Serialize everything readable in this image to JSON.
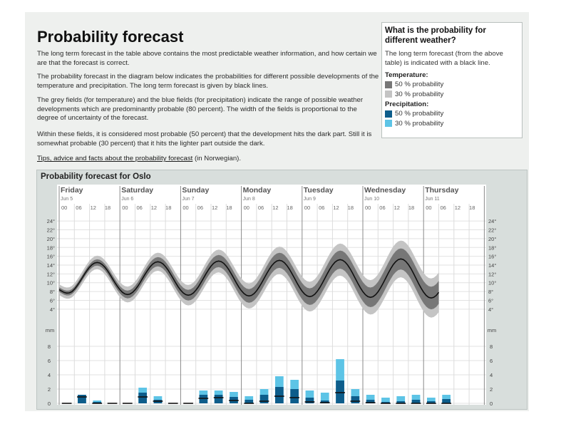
{
  "title": "Probability forecast",
  "paragraphs": [
    "The long term forecast in the table above contains the most predictable weather information, and how certain we are that the forecast is correct.",
    "The probability forecast in the diagram below indicates the probabilities for different possible developments of the temperature and precipitation. The long term forecast is given by black lines.",
    "The grey fields (for temperature) and the blue fields (for precipitation) indicate the range of possible weather developments which are predominantly probable (80 percent). The width of the fields is proportional to the degree of uncertainty of the forecast.",
    "Within these fields, it is considered most probable (50 percent) that the development hits the dark part. Still it is somewhat probable (30 percent) that it hits the lighter part outside the dark."
  ],
  "tips": {
    "link_text": "Tips, advice and facts about the probability forecast",
    "suffix": " (in Norwegian)."
  },
  "info": {
    "title": "What is the probability for different weather?",
    "text": "The long term forecast (from the above table) is indicated with a black line.",
    "temperature_label": "Temperature:",
    "precipitation_label": "Precipitation:",
    "temp_50": "50 % probability",
    "temp_30": "30 % probability",
    "precip_50": "50 % probability",
    "precip_30": "30 % probability"
  },
  "colors": {
    "temp_dark": "#777777",
    "temp_light": "#c4c4c4",
    "precip_dark": "#0d5d8b",
    "precip_light": "#5dc4e6"
  },
  "chart_data": {
    "type": "area",
    "title": "Probability forecast for Oslo",
    "days": [
      {
        "name": "Friday",
        "date": "Jun 5"
      },
      {
        "name": "Saturday",
        "date": "Jun 6"
      },
      {
        "name": "Sunday",
        "date": "Jun 7"
      },
      {
        "name": "Monday",
        "date": "Jun 8"
      },
      {
        "name": "Tuesday",
        "date": "Jun 9"
      },
      {
        "name": "Wednesday",
        "date": "Jun 10"
      },
      {
        "name": "Thursday",
        "date": "Jun 11"
      }
    ],
    "hour_labels": [
      "00",
      "06",
      "12",
      "18"
    ],
    "temp_ticks": [
      "24°",
      "22°",
      "20°",
      "18°",
      "16°",
      "14°",
      "12°",
      "10°",
      "8°",
      "6°",
      "4°"
    ],
    "temp_ylim": [
      3,
      25
    ],
    "precip_unit": "mm",
    "precip_ticks": [
      "8",
      "6",
      "4",
      "2",
      "0"
    ],
    "precip_ylim": [
      0,
      8
    ],
    "temperature": {
      "median_mean": 11.0,
      "median_amplitude_start": 3.5,
      "median_amplitude_end": 4.5,
      "band_dark_halfwidth_start": 0.5,
      "band_dark_halfwidth_end": 2.6,
      "band_light_halfwidth_start": 1.2,
      "band_light_halfwidth_end": 4.5,
      "max_hour": 15,
      "start_value": 8.3,
      "end_hour": 150
    },
    "precipitation_6h": [
      {
        "hour": 0,
        "median": 0,
        "p50": 0,
        "p80": 0
      },
      {
        "hour": 6,
        "median": 0.9,
        "p50": 1.2,
        "p80": 1.2
      },
      {
        "hour": 12,
        "median": 0,
        "p50": 0.2,
        "p80": 0.4
      },
      {
        "hour": 18,
        "median": 0,
        "p50": 0,
        "p80": 0
      },
      {
        "hour": 24,
        "median": 0,
        "p50": 0,
        "p80": 0
      },
      {
        "hour": 30,
        "median": 0.9,
        "p50": 1.5,
        "p80": 2.2
      },
      {
        "hour": 36,
        "median": 0.3,
        "p50": 0.5,
        "p80": 1.0
      },
      {
        "hour": 42,
        "median": 0,
        "p50": 0,
        "p80": 0
      },
      {
        "hour": 48,
        "median": 0,
        "p50": 0,
        "p80": 0
      },
      {
        "hour": 54,
        "median": 0.7,
        "p50": 1.2,
        "p80": 1.8
      },
      {
        "hour": 60,
        "median": 0.8,
        "p50": 1.2,
        "p80": 1.8
      },
      {
        "hour": 66,
        "median": 0.4,
        "p50": 0.9,
        "p80": 1.6
      },
      {
        "hour": 72,
        "median": 0,
        "p50": 0.5,
        "p80": 1.0
      },
      {
        "hour": 78,
        "median": 0.3,
        "p50": 1.2,
        "p80": 2.0
      },
      {
        "hour": 84,
        "median": 1.0,
        "p50": 2.3,
        "p80": 3.8
      },
      {
        "hour": 90,
        "median": 0.8,
        "p50": 2.0,
        "p80": 3.3
      },
      {
        "hour": 96,
        "median": 0.2,
        "p50": 0.8,
        "p80": 1.8
      },
      {
        "hour": 102,
        "median": 0.1,
        "p50": 0.4,
        "p80": 1.5
      },
      {
        "hour": 108,
        "median": 1.5,
        "p50": 3.2,
        "p80": 6.2
      },
      {
        "hour": 114,
        "median": 0.3,
        "p50": 1.0,
        "p80": 2.0
      },
      {
        "hour": 120,
        "median": 0.1,
        "p50": 0.5,
        "p80": 1.2
      },
      {
        "hour": 126,
        "median": 0,
        "p50": 0.2,
        "p80": 0.8
      },
      {
        "hour": 132,
        "median": 0,
        "p50": 0.3,
        "p80": 1.0
      },
      {
        "hour": 138,
        "median": 0,
        "p50": 0.5,
        "p80": 1.2
      },
      {
        "hour": 144,
        "median": 0,
        "p50": 0.3,
        "p80": 0.8
      },
      {
        "hour": 150,
        "median": 0,
        "p50": 0.6,
        "p80": 1.2
      }
    ]
  }
}
